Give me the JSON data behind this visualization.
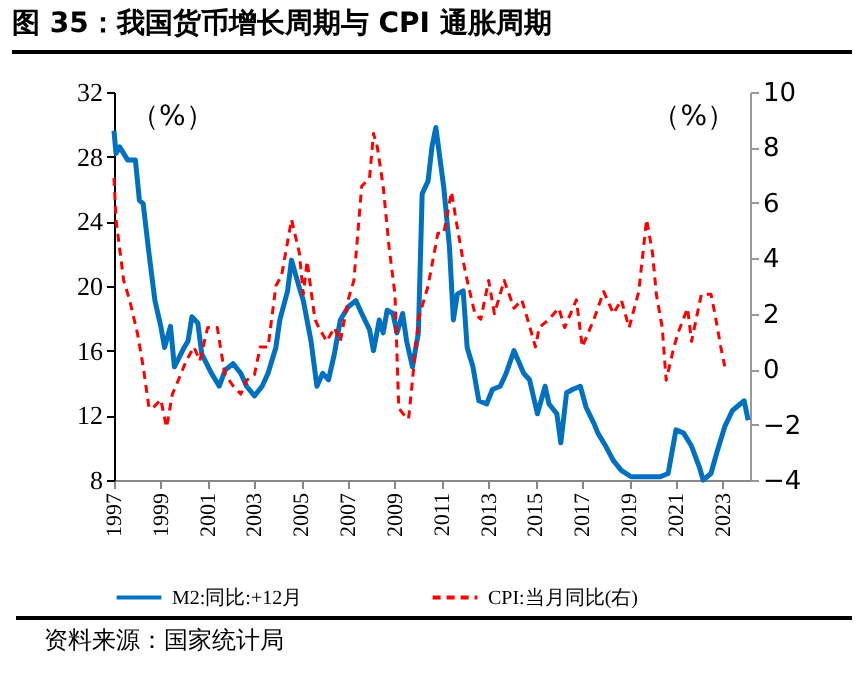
{
  "chart_data": {
    "type": "line",
    "title": "图 35：我国货币增长周期与 CPI 通胀周期",
    "ylabel": "（%）",
    "y2label": "（%）",
    "annotations": [
      "资料来源：国家统计局"
    ],
    "xlim": [
      "1997-01",
      "2024-03"
    ],
    "xticks": [
      "1997",
      "1999",
      "2001",
      "2003",
      "2005",
      "2007",
      "2009",
      "2011",
      "2013",
      "2015",
      "2017",
      "2019",
      "2021",
      "2023"
    ],
    "ylim": [
      8,
      32
    ],
    "yticks": [
      8,
      12,
      16,
      20,
      24,
      28,
      32
    ],
    "y2lim": [
      -4,
      10
    ],
    "y2ticks": [
      -4,
      -2,
      0,
      2,
      4,
      6,
      8,
      10
    ],
    "grid": false,
    "legend": "bottom",
    "series": [
      {
        "name": "M2:同比:+12月",
        "color": "#0070c0",
        "line_style": "solid",
        "x": [
          "1997-01",
          "1997-02",
          "1997-04",
          "1997-08",
          "1997-12",
          "1998-02",
          "1998-04",
          "1998-07",
          "1998-10",
          "1999-01",
          "1999-03",
          "1999-06",
          "1999-08",
          "2000-01",
          "2000-03",
          "2000-05",
          "2000-08",
          "2000-10",
          "2001-03",
          "2001-07",
          "2001-10",
          "2002-02",
          "2002-06",
          "2002-09",
          "2003-01",
          "2003-05",
          "2003-08",
          "2003-12",
          "2004-02",
          "2004-06",
          "2004-08",
          "2004-12",
          "2005-02",
          "2005-06",
          "2005-09",
          "2005-12",
          "2006-03",
          "2006-06",
          "2006-09",
          "2007-01",
          "2007-05",
          "2007-08",
          "2007-12",
          "2008-02",
          "2008-05",
          "2008-07",
          "2008-09",
          "2008-12",
          "2009-02",
          "2009-05",
          "2009-07",
          "2009-10",
          "2010-01",
          "2010-03",
          "2010-06",
          "2010-08",
          "2010-10",
          "2011-02",
          "2011-05",
          "2011-07",
          "2011-09",
          "2011-12",
          "2012-02",
          "2012-05",
          "2012-08",
          "2012-12",
          "2013-03",
          "2013-07",
          "2013-10",
          "2014-02",
          "2014-07",
          "2014-10",
          "2015-02",
          "2015-06",
          "2015-08",
          "2015-12",
          "2016-02",
          "2016-05",
          "2016-08",
          "2016-12",
          "2017-03",
          "2017-07",
          "2017-09",
          "2018-01",
          "2018-05",
          "2018-09",
          "2019-02",
          "2019-09",
          "2020-05",
          "2020-09",
          "2021-01",
          "2021-05",
          "2021-09",
          "2022-01",
          "2022-03",
          "2022-07",
          "2022-10",
          "2023-02",
          "2023-06",
          "2023-08",
          "2023-12",
          "2024-02"
        ],
        "values": [
          29.6,
          28.2,
          28.6,
          27.8,
          27.8,
          25.3,
          25.1,
          22,
          19.1,
          17.5,
          16.2,
          17.5,
          15,
          16.2,
          16.6,
          18.1,
          17.7,
          15.8,
          14.6,
          13.8,
          14.8,
          15.2,
          14.6,
          13.8,
          13.2,
          13.8,
          14.6,
          16.2,
          17.9,
          19.7,
          21.6,
          19.9,
          19.1,
          16.6,
          13.8,
          14.6,
          14.2,
          15.8,
          17.9,
          18.7,
          19.1,
          18.3,
          17.3,
          16,
          17.9,
          17.1,
          18.5,
          18.3,
          17.1,
          18.3,
          16.6,
          15,
          17.1,
          25.7,
          26.5,
          28.6,
          29.8,
          26.1,
          22.4,
          17.9,
          19.5,
          19.7,
          16.2,
          15,
          12.9,
          12.7,
          13.6,
          13.8,
          14.6,
          16,
          14.6,
          14.2,
          12.1,
          13.8,
          12.7,
          12.1,
          10.3,
          13.4,
          13.6,
          13.8,
          12.5,
          11.5,
          10.9,
          10.1,
          9.2,
          8.6,
          8.2,
          8.2,
          8.2,
          8.4,
          11.1,
          10.9,
          10.1,
          8.8,
          8,
          8.4,
          9.7,
          11.3,
          12.3,
          12.5,
          12.9,
          11.7
        ]
      },
      {
        "name": "CPI:当月同比(右)",
        "color": "#ff0000",
        "line_style": "dashed",
        "axis": "y2",
        "x": [
          "1997-01",
          "1997-02",
          "1997-06",
          "1997-09",
          "1998-01",
          "1998-04",
          "1998-07",
          "1998-09",
          "1999-01",
          "1999-04",
          "1999-07",
          "1999-10",
          "2000-02",
          "2000-06",
          "2000-09",
          "2001-01",
          "2001-06",
          "2001-08",
          "2001-10",
          "2002-02",
          "2002-06",
          "2002-09",
          "2003-01",
          "2003-04",
          "2003-08",
          "2003-12",
          "2004-03",
          "2004-06",
          "2004-08",
          "2004-12",
          "2005-02",
          "2005-04",
          "2005-08",
          "2005-10",
          "2006-02",
          "2006-06",
          "2006-09",
          "2007-01",
          "2007-04",
          "2007-08",
          "2007-12",
          "2008-02",
          "2008-04",
          "2008-07",
          "2008-10",
          "2009-01",
          "2009-03",
          "2009-05",
          "2009-08",
          "2009-10",
          "2010-01",
          "2010-06",
          "2010-11",
          "2011-02",
          "2011-06",
          "2011-09",
          "2011-12",
          "2012-02",
          "2012-06",
          "2012-09",
          "2013-01",
          "2013-04",
          "2013-09",
          "2014-02",
          "2014-06",
          "2014-09",
          "2015-01",
          "2015-03",
          "2015-08",
          "2016-01",
          "2016-04",
          "2016-10",
          "2017-01",
          "2017-07",
          "2017-12",
          "2018-05",
          "2018-09",
          "2019-01",
          "2019-06",
          "2019-10",
          "2020-01",
          "2020-03",
          "2020-06",
          "2020-08",
          "2020-12",
          "2021-02",
          "2021-07",
          "2021-09",
          "2022-02",
          "2022-07",
          "2022-09",
          "2022-12",
          "2023-02"
        ],
        "values": [
          6.9,
          5.4,
          3.2,
          2.5,
          1.3,
          0.1,
          -1.4,
          -1.4,
          -1.1,
          -2.1,
          -0.9,
          -0.4,
          0.3,
          0.8,
          0.3,
          1.5,
          1.5,
          0.6,
          -0.2,
          -0.6,
          -0.9,
          -0.4,
          -0.2,
          0.8,
          0.8,
          3.0,
          3.4,
          4.6,
          5.4,
          4.2,
          2.7,
          3.9,
          1.8,
          1.5,
          1.0,
          1.5,
          1.0,
          2.5,
          3.2,
          6.6,
          6.9,
          8.5,
          8.0,
          6.6,
          4.4,
          2.7,
          -1.4,
          -1.6,
          -1.8,
          -0.4,
          1.8,
          3.0,
          4.9,
          4.9,
          6.4,
          5.1,
          3.9,
          3.2,
          2.0,
          1.8,
          3.2,
          2.0,
          3.2,
          2.2,
          2.5,
          1.8,
          0.8,
          1.5,
          1.8,
          2.2,
          1.5,
          2.5,
          0.8,
          1.8,
          2.8,
          2.0,
          2.5,
          1.5,
          2.8,
          5.4,
          4.2,
          2.7,
          1.5,
          -0.4,
          0.8,
          1.3,
          2.2,
          1.0,
          2.7,
          2.7,
          2.0,
          0.8,
          0.1
        ]
      }
    ]
  }
}
